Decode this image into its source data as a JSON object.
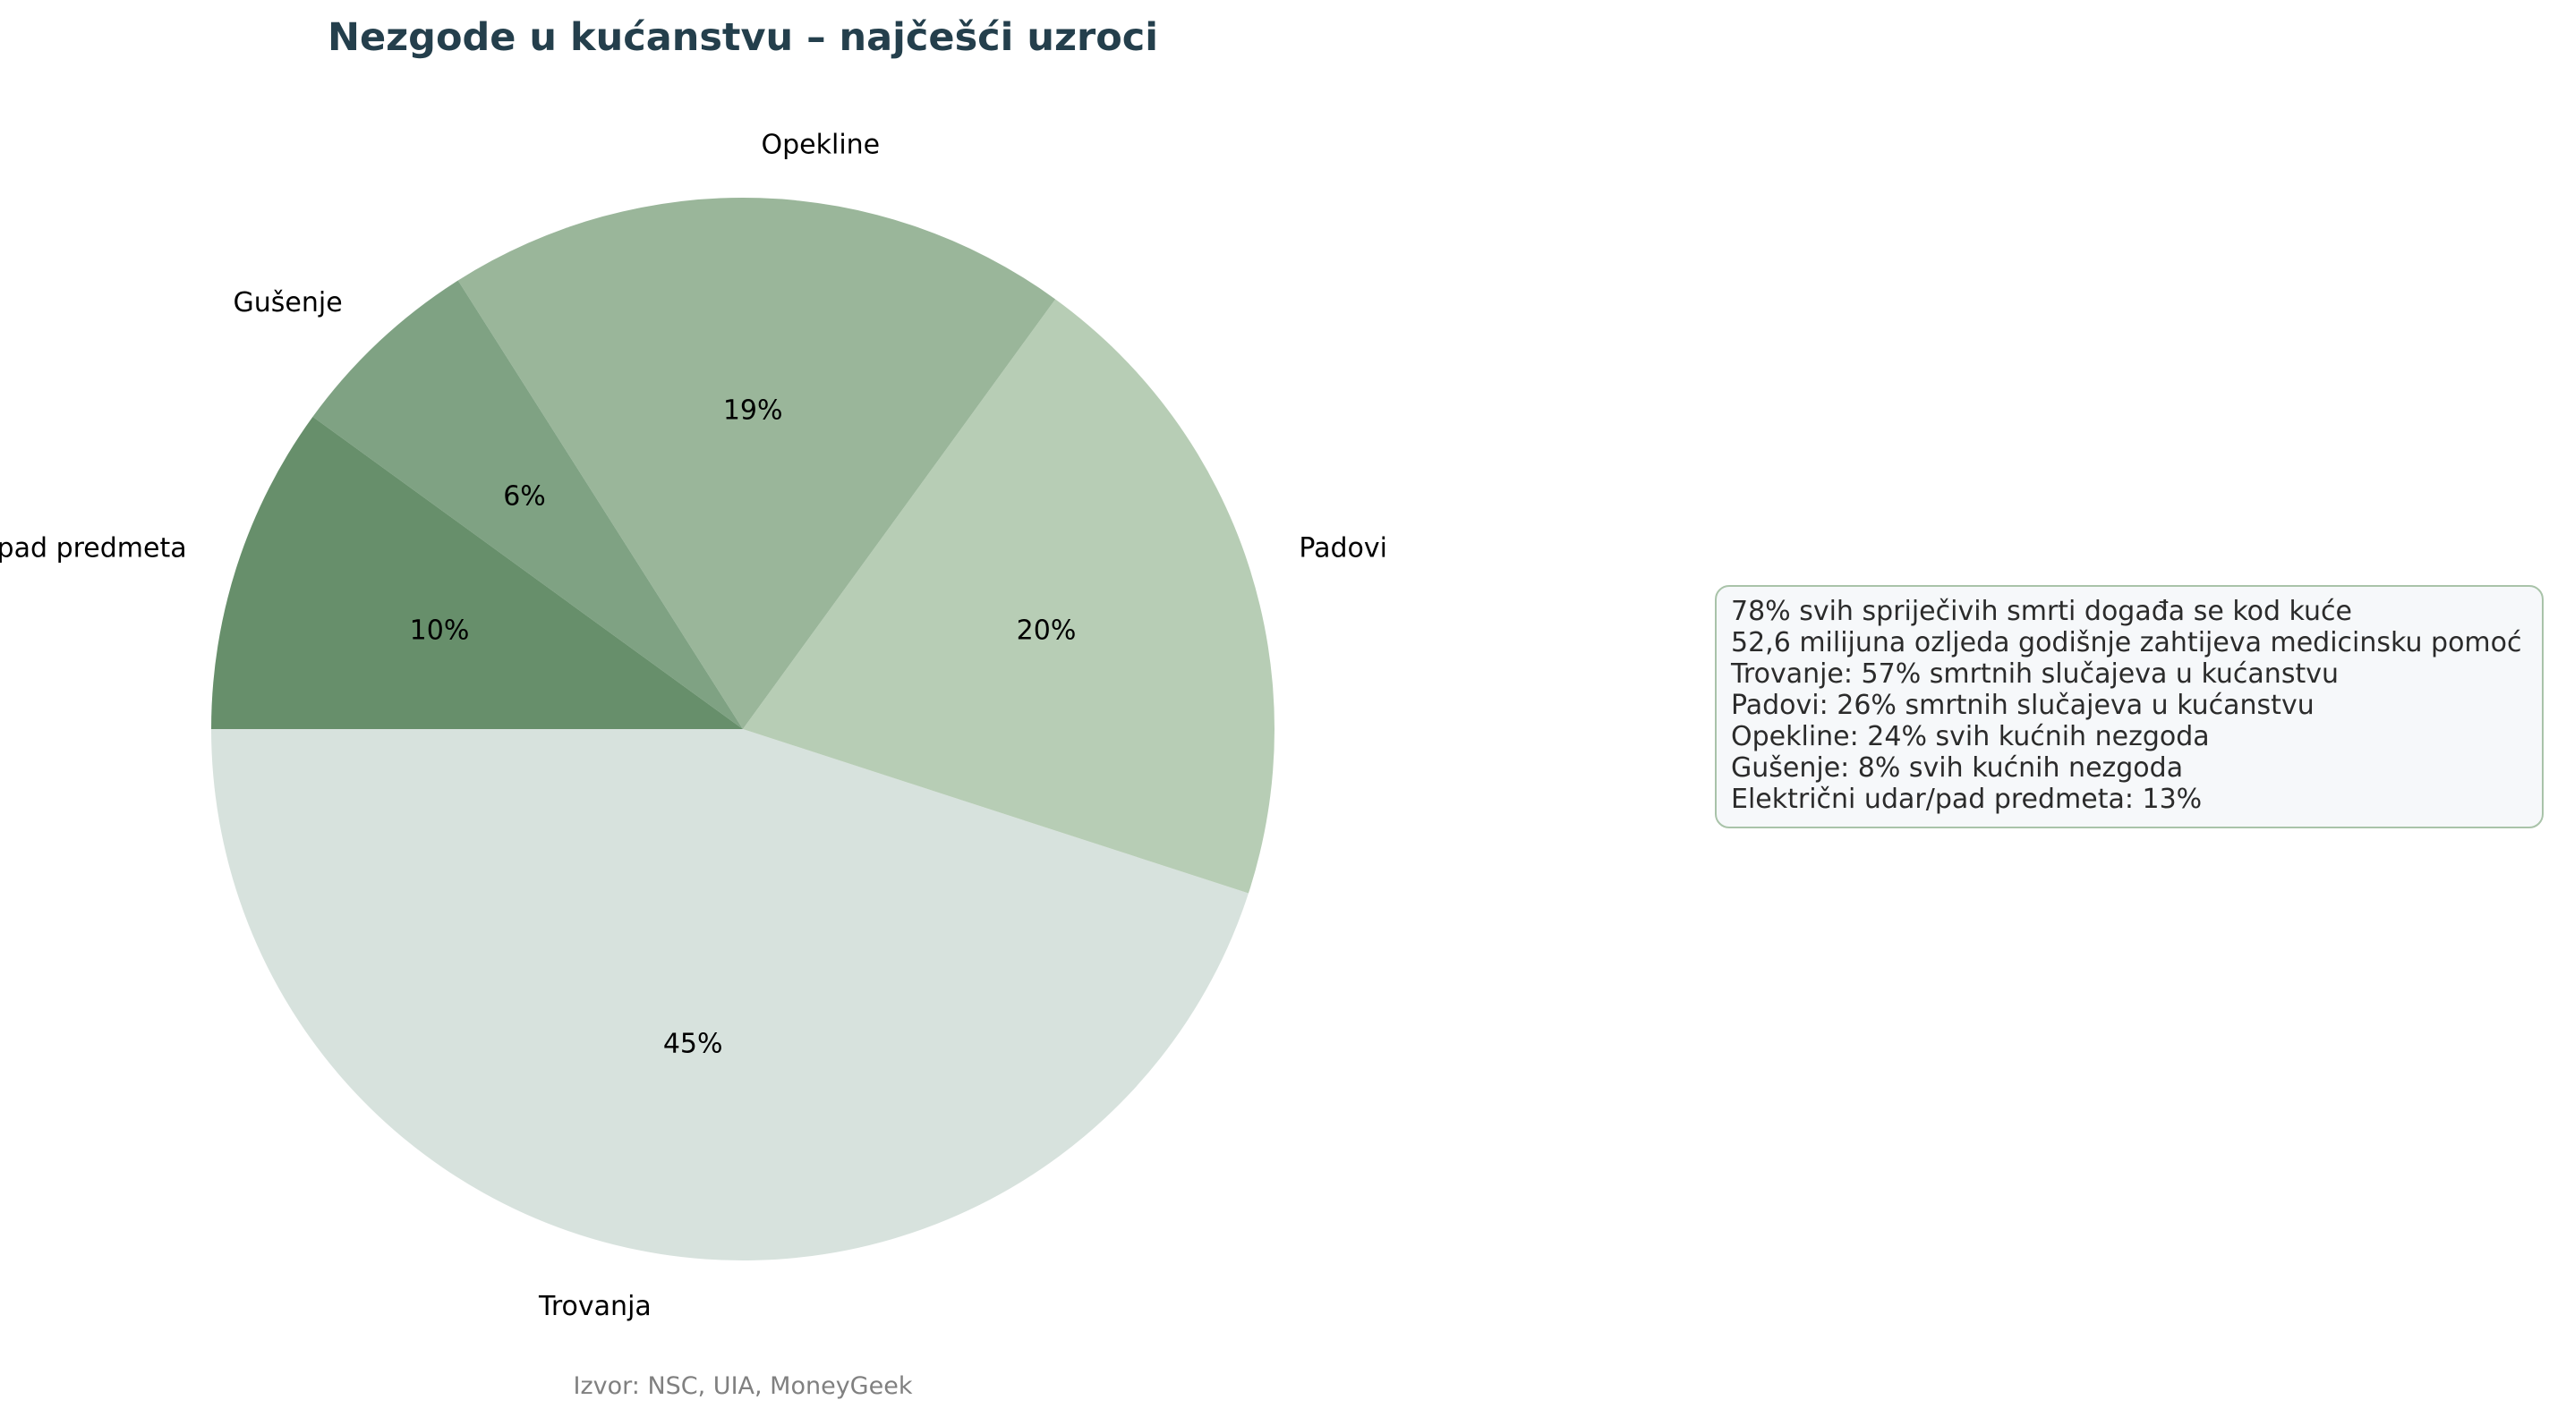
{
  "chart_data": {
    "type": "pie",
    "title": "Nezgode u kućanstvu – najčešći uzroci",
    "categories": [
      "Trovanja",
      "Padovi",
      "Opekline",
      "Gušenje",
      "Električni udar / pad predmeta"
    ],
    "values": [
      45,
      20,
      19,
      6,
      10
    ],
    "value_labels": [
      "45%",
      "20%",
      "19%",
      "6%",
      "10%"
    ],
    "colors": [
      "#d7e2dd",
      "#b7cdb5",
      "#9ab69a",
      "#7fa283",
      "#678f6b"
    ],
    "start": "left, counter-clockwise",
    "source": "Izvor: NSC, UIA, MoneyGeek"
  },
  "info_box": {
    "lines": [
      "78% svih spriječivih smrti događa se kod kuće",
      "52,6 milijuna ozljeda godišnje zahtijeva medicinsku pomoć",
      "Trovanje: 57% smrtnih slučajeva u kućanstvu",
      "Padovi: 26% smrtnih slučajeva u kućanstvu",
      "Opekline: 24% svih kućnih nezgoda",
      "Gušenje: 8% svih kućnih nezgoda",
      "Električni udar/pad predmeta: 13%"
    ],
    "background": "#f6f8fa",
    "border": "#a9c3a9"
  }
}
